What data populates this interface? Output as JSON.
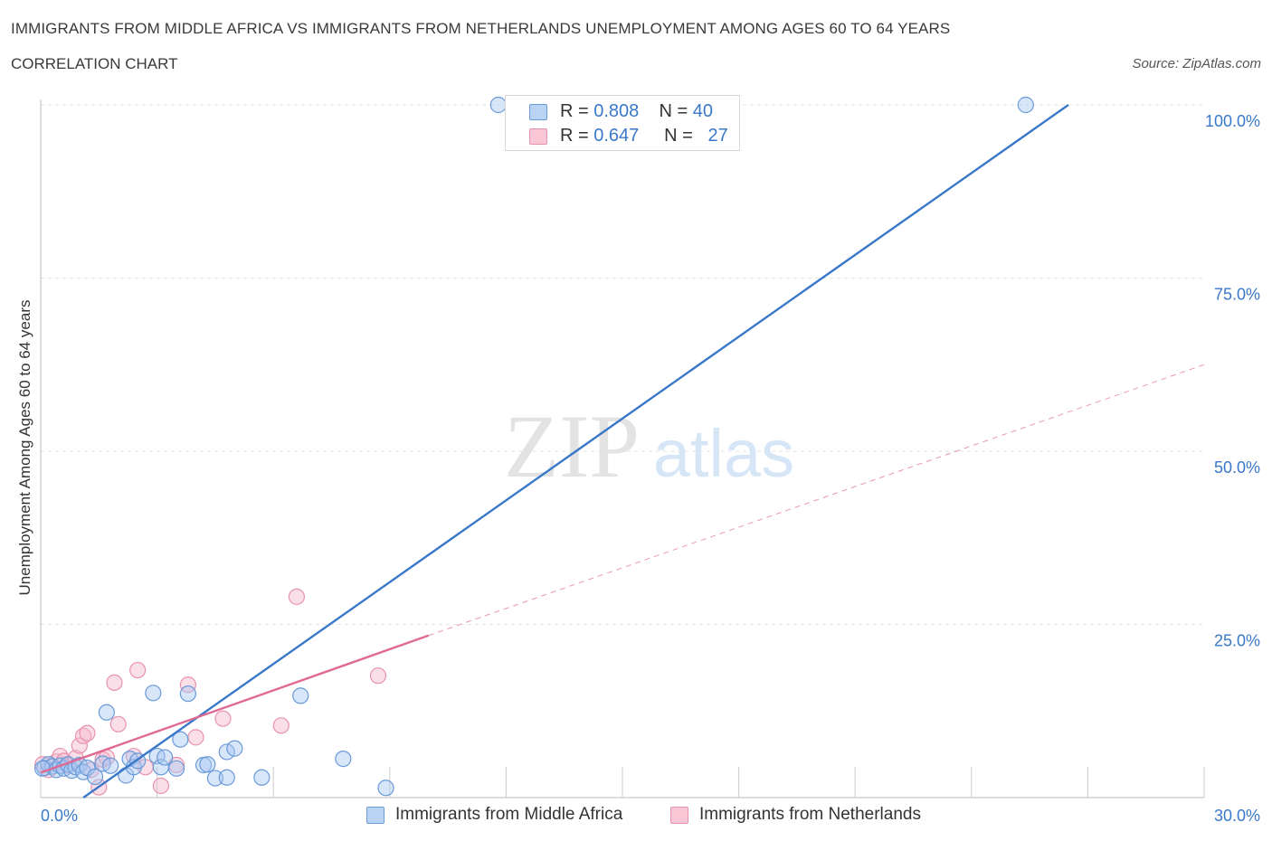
{
  "header": {
    "title": "IMMIGRANTS FROM MIDDLE AFRICA VS IMMIGRANTS FROM NETHERLANDS UNEMPLOYMENT AMONG AGES 60 TO 64 YEARS",
    "subtitle": "CORRELATION CHART",
    "source": "Source: ZipAtlas.com"
  },
  "watermark": {
    "zip": "ZIP",
    "atlas": "atlas"
  },
  "legend": {
    "r_label": "R =",
    "n_label": "N =",
    "series": [
      {
        "name": "Immigrants from Middle Africa",
        "r": "0.808",
        "n": "40"
      },
      {
        "name": "Immigrants from Netherlands",
        "r": "0.647",
        "n": "27"
      }
    ]
  },
  "colors": {
    "blue_fill": "#a9c8f2",
    "blue_stroke": "#6a9ad8",
    "blue_line": "#3a78c9",
    "pink_fill": "#f5b8cb",
    "pink_stroke": "#e792ae",
    "pink_line": "#e06a94",
    "axis_text": "#3a78c9",
    "grid": "#e3e3e3"
  },
  "chart_data": {
    "type": "scatter",
    "title": "IMMIGRANTS FROM MIDDLE AFRICA VS IMMIGRANTS FROM NETHERLANDS UNEMPLOYMENT AMONG AGES 60 TO 64 YEARS",
    "xlabel": "",
    "ylabel": "Unemployment Among Ages 60 to 64 years",
    "xlim": [
      0,
      30
    ],
    "ylim": [
      0,
      100
    ],
    "x_tick_labels": [
      "0.0%",
      "30.0%"
    ],
    "y_ticks": [
      25,
      50,
      75,
      100
    ],
    "y_tick_labels": [
      "25.0%",
      "50.0%",
      "75.0%",
      "100.0%"
    ],
    "grid": true,
    "legend_position": "top-center",
    "series": [
      {
        "name": "Immigrants from Middle Africa",
        "r": 0.808,
        "n": 40,
        "points": [
          [
            0.1,
            4.3
          ],
          [
            0.2,
            4.8
          ],
          [
            0.3,
            4.5
          ],
          [
            0.4,
            4.0
          ],
          [
            0.5,
            4.6
          ],
          [
            0.6,
            4.2
          ],
          [
            0.7,
            4.8
          ],
          [
            0.8,
            3.9
          ],
          [
            0.9,
            4.4
          ],
          [
            1.0,
            4.7
          ],
          [
            1.1,
            3.7
          ],
          [
            1.2,
            4.3
          ],
          [
            1.4,
            3.0
          ],
          [
            1.6,
            4.9
          ],
          [
            1.7,
            12.3
          ],
          [
            1.8,
            4.6
          ],
          [
            2.2,
            3.2
          ],
          [
            2.3,
            5.6
          ],
          [
            2.4,
            4.4
          ],
          [
            2.5,
            5.3
          ],
          [
            2.9,
            15.1
          ],
          [
            3.0,
            6.0
          ],
          [
            3.1,
            4.4
          ],
          [
            3.2,
            5.8
          ],
          [
            3.5,
            4.2
          ],
          [
            3.6,
            8.4
          ],
          [
            3.8,
            15.0
          ],
          [
            4.2,
            4.7
          ],
          [
            4.3,
            4.8
          ],
          [
            4.5,
            2.8
          ],
          [
            4.8,
            6.6
          ],
          [
            4.8,
            2.9
          ],
          [
            5.0,
            7.1
          ],
          [
            5.7,
            2.9
          ],
          [
            6.7,
            14.7
          ],
          [
            7.8,
            5.6
          ],
          [
            8.9,
            1.4
          ],
          [
            11.8,
            100.0
          ],
          [
            25.4,
            100.0
          ],
          [
            0.05,
            4.2
          ]
        ],
        "trend": {
          "x0": 1.1,
          "y0": 0.0,
          "x1": 26.5,
          "y1": 100.0
        }
      },
      {
        "name": "Immigrants from Netherlands",
        "r": 0.647,
        "n": 27,
        "points": [
          [
            0.05,
            4.8
          ],
          [
            0.2,
            4.0
          ],
          [
            0.4,
            5.2
          ],
          [
            0.5,
            6.0
          ],
          [
            0.6,
            5.3
          ],
          [
            0.7,
            4.6
          ],
          [
            0.9,
            5.7
          ],
          [
            1.0,
            7.5
          ],
          [
            1.1,
            8.9
          ],
          [
            1.2,
            9.3
          ],
          [
            1.3,
            4.0
          ],
          [
            1.5,
            1.5
          ],
          [
            1.6,
            5.5
          ],
          [
            1.7,
            5.8
          ],
          [
            1.9,
            16.6
          ],
          [
            2.0,
            10.6
          ],
          [
            2.4,
            6.0
          ],
          [
            2.5,
            18.4
          ],
          [
            2.7,
            4.4
          ],
          [
            3.1,
            1.7
          ],
          [
            3.5,
            4.7
          ],
          [
            3.8,
            16.3
          ],
          [
            4.0,
            8.7
          ],
          [
            4.7,
            11.4
          ],
          [
            6.2,
            10.4
          ],
          [
            6.6,
            29.0
          ],
          [
            8.7,
            17.6
          ]
        ],
        "trend": {
          "x0": 0.0,
          "y0": 3.6,
          "x1": 10.0,
          "y1": 23.4
        },
        "trend_extension": {
          "x0": 10.0,
          "y0": 23.4,
          "x1": 30.0,
          "y1": 62.5
        }
      }
    ]
  }
}
